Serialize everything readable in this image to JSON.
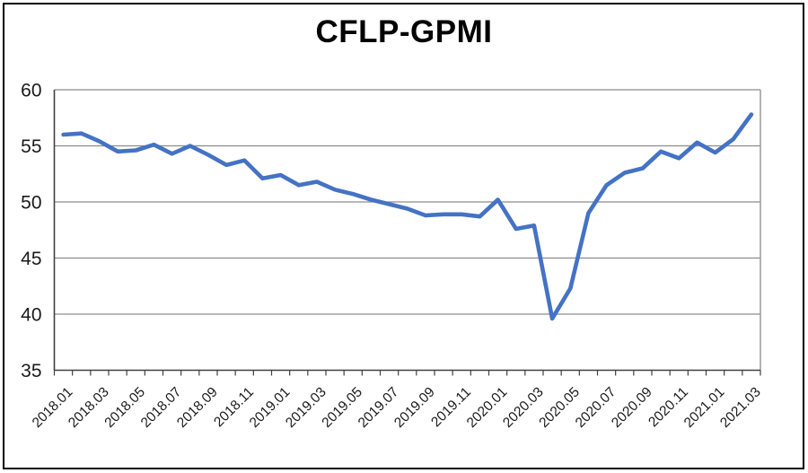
{
  "chart_data": {
    "type": "line",
    "title": "CFLP-GPMI",
    "xlabel": "",
    "ylabel": "",
    "ylim": [
      35,
      60
    ],
    "y_ticks": [
      35,
      40,
      45,
      50,
      55,
      60
    ],
    "grid": true,
    "legend": "none",
    "line_color": "#4472C4",
    "x_label_every": 2,
    "x": [
      "2018.01",
      "2018.02",
      "2018.03",
      "2018.04",
      "2018.05",
      "2018.06",
      "2018.07",
      "2018.08",
      "2018.09",
      "2018.10",
      "2018.11",
      "2018.12",
      "2019.01",
      "2019.02",
      "2019.03",
      "2019.04",
      "2019.05",
      "2019.06",
      "2019.07",
      "2019.08",
      "2019.09",
      "2019.10",
      "2019.11",
      "2019.12",
      "2020.01",
      "2020.02",
      "2020.03",
      "2020.04",
      "2020.05",
      "2020.06",
      "2020.07",
      "2020.08",
      "2020.09",
      "2020.10",
      "2020.11",
      "2020.12",
      "2021.01",
      "2021.02",
      "2021.03"
    ],
    "values": [
      56.0,
      56.1,
      55.4,
      54.5,
      54.6,
      55.1,
      54.3,
      55.0,
      54.2,
      53.3,
      53.7,
      52.1,
      52.4,
      51.5,
      51.8,
      51.1,
      50.7,
      50.2,
      49.8,
      49.4,
      48.8,
      48.9,
      48.9,
      48.7,
      50.2,
      47.6,
      47.9,
      39.6,
      42.3,
      49.0,
      51.5,
      52.6,
      53.0,
      54.5,
      53.9,
      55.3,
      54.4,
      55.6,
      57.8
    ],
    "colors": {
      "axis": "#404040",
      "gridline": "#8c8c8c",
      "plot_right_border": "#8c8c8c",
      "tick": "#404040",
      "label_text": "#1a1a1a",
      "frame_border": "#000000",
      "background": "#ffffff"
    }
  }
}
